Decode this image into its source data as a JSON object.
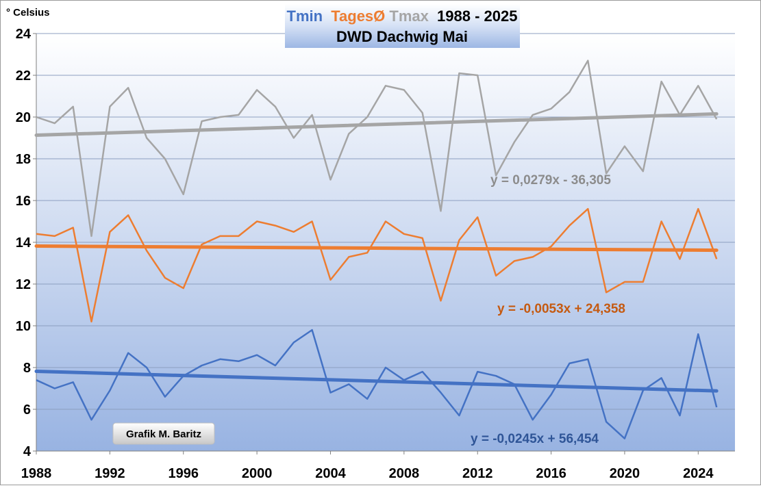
{
  "chart_data": {
    "type": "line",
    "title": {
      "part_tmin": "Tmin",
      "part_mean": "TagesØ",
      "part_tmax": "Tmax",
      "part_years": "1988 - 2025",
      "line2": "DWD Dachwig Mai"
    },
    "ylabel": "° Celsius",
    "xlabel": "",
    "xlim": [
      1988,
      2026
    ],
    "ylim": [
      4,
      24
    ],
    "x_ticks": [
      1988,
      1992,
      1996,
      2000,
      2004,
      2008,
      2012,
      2016,
      2020,
      2024
    ],
    "y_ticks": [
      4,
      6,
      8,
      10,
      12,
      14,
      16,
      18,
      20,
      22,
      24
    ],
    "grid": true,
    "x": [
      1988,
      1989,
      1990,
      1991,
      1992,
      1993,
      1994,
      1995,
      1996,
      1997,
      1998,
      1999,
      2000,
      2001,
      2002,
      2003,
      2004,
      2005,
      2006,
      2007,
      2008,
      2009,
      2010,
      2011,
      2012,
      2013,
      2014,
      2015,
      2016,
      2017,
      2018,
      2019,
      2020,
      2021,
      2022,
      2023,
      2024,
      2025
    ],
    "series": [
      {
        "name": "Tmax",
        "color": "#a5a5a5",
        "values": [
          20.0,
          19.7,
          20.5,
          14.3,
          20.5,
          21.4,
          19.0,
          18.0,
          16.3,
          19.8,
          20.0,
          20.1,
          21.3,
          20.5,
          19.0,
          20.1,
          17.0,
          19.2,
          20.0,
          21.5,
          21.3,
          20.2,
          15.5,
          22.1,
          22.0,
          17.2,
          18.8,
          20.1,
          20.4,
          21.2,
          22.7,
          17.3,
          18.6,
          17.4,
          21.7,
          20.1,
          21.5,
          19.9
        ],
        "trend": {
          "label": "y = 0,0279x - 36,305",
          "start": 19.13,
          "end": 20.15,
          "color": "#a5a5a5"
        }
      },
      {
        "name": "TagesØ",
        "color": "#ed7d31",
        "values": [
          14.4,
          14.3,
          14.7,
          10.2,
          14.5,
          15.3,
          13.6,
          12.3,
          11.8,
          13.9,
          14.3,
          14.3,
          15.0,
          14.8,
          14.5,
          15.0,
          12.2,
          13.3,
          13.5,
          15.0,
          14.4,
          14.2,
          11.2,
          14.1,
          15.2,
          12.4,
          13.1,
          13.3,
          13.8,
          14.8,
          15.6,
          11.6,
          12.1,
          12.1,
          15.0,
          13.2,
          15.6,
          13.2
        ],
        "trend": {
          "label": "y = -0,0053x + 24,358",
          "start": 13.82,
          "end": 13.62,
          "color": "#ed7d31"
        }
      },
      {
        "name": "Tmin",
        "color": "#4472c4",
        "values": [
          7.4,
          7.0,
          7.3,
          5.5,
          6.9,
          8.7,
          8.0,
          6.6,
          7.6,
          8.1,
          8.4,
          8.3,
          8.6,
          8.1,
          9.2,
          9.8,
          6.8,
          7.2,
          6.5,
          8.0,
          7.4,
          7.8,
          6.8,
          5.7,
          7.8,
          7.6,
          7.2,
          5.5,
          6.7,
          8.2,
          8.4,
          5.4,
          4.6,
          6.9,
          7.5,
          5.7,
          9.6,
          6.1
        ],
        "trend": {
          "label": "y = -0,0245x + 56,454",
          "start": 7.82,
          "end": 6.88,
          "color": "#4472c4"
        }
      }
    ],
    "annotations": {
      "credit": "Grafik M. Baritz"
    }
  },
  "colors": {
    "tmin": "#4472c4",
    "mean": "#ed7d31",
    "tmax": "#a5a5a5",
    "tmin_trend_label": "#2f5597",
    "mean_trend_label": "#c55a11",
    "tmax_trend_label": "#8c8c8c"
  }
}
